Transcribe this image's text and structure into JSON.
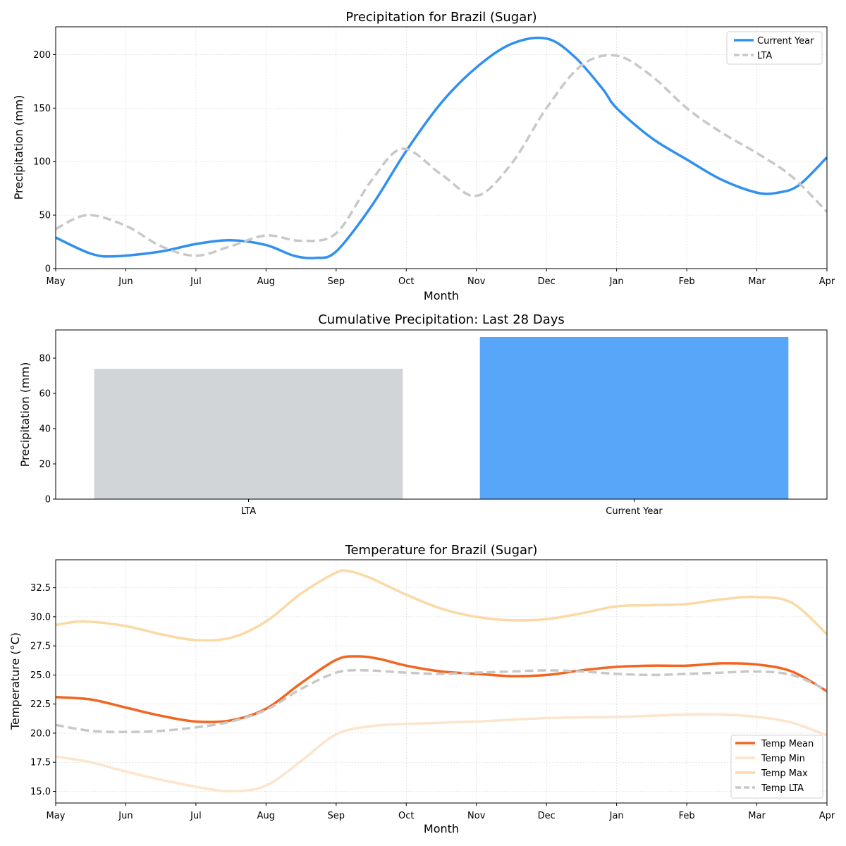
{
  "chart_data": [
    {
      "type": "line",
      "title": "Precipitation for Brazil (Sugar)",
      "xlabel": "Month",
      "ylabel": "Precipitation (mm)",
      "categories": [
        "May",
        "Jun",
        "Jul",
        "Aug",
        "Sep",
        "Oct",
        "Nov",
        "Dec",
        "Jan",
        "Feb",
        "Mar",
        "Apr"
      ],
      "xlim": [
        0,
        11
      ],
      "ylim": [
        0,
        226
      ],
      "yticks": [
        0,
        50,
        100,
        150,
        200
      ],
      "legend": "top-right",
      "series": [
        {
          "name": "Current Year",
          "color": "#3090f0",
          "style": "solid",
          "x": [
            0,
            0.5,
            0.85,
            1.5,
            2,
            2.5,
            3,
            3.4,
            3.7,
            4,
            4.5,
            5,
            5.5,
            6,
            6.5,
            7,
            7.4,
            7.8,
            8,
            8.5,
            9,
            9.5,
            10,
            10.3,
            10.6,
            11
          ],
          "y": [
            29,
            14,
            11.5,
            16,
            23,
            26.5,
            22,
            12,
            10,
            16,
            58,
            110,
            155,
            188,
            210,
            215,
            198,
            168,
            150,
            122,
            102,
            83,
            71,
            71,
            78,
            104
          ]
        },
        {
          "name": "LTA",
          "color": "#c8c8c8",
          "style": "dashed",
          "x": [
            0,
            0.45,
            1,
            1.5,
            2,
            2.5,
            3,
            3.5,
            4,
            4.5,
            4.95,
            5.5,
            6,
            6.5,
            7,
            7.5,
            8,
            8.5,
            9,
            9.5,
            10,
            10.5,
            11
          ],
          "y": [
            37,
            50,
            40,
            21,
            12,
            21,
            31,
            26,
            33,
            82,
            112,
            88,
            68,
            98,
            150,
            190,
            199,
            180,
            150,
            127,
            108,
            86,
            53
          ]
        }
      ]
    },
    {
      "type": "bar",
      "title": "Cumulative Precipitation: Last 28 Days",
      "xlabel": "",
      "ylabel": "Precipitation (mm)",
      "categories": [
        "LTA",
        "Current Year"
      ],
      "values": [
        74,
        92
      ],
      "colors": [
        "#d1d5d8",
        "#58a6fa"
      ],
      "ylim": [
        0,
        96
      ],
      "yticks": [
        0,
        20,
        40,
        60,
        80
      ]
    },
    {
      "type": "line",
      "title": "Temperature for Brazil (Sugar)",
      "xlabel": "Month",
      "ylabel": "Temperature (°C)",
      "categories": [
        "May",
        "Jun",
        "Jul",
        "Aug",
        "Sep",
        "Oct",
        "Nov",
        "Dec",
        "Jan",
        "Feb",
        "Mar",
        "Apr"
      ],
      "xlim": [
        0,
        11
      ],
      "ylim": [
        14,
        34.9
      ],
      "yticks": [
        "15.0",
        "17.5",
        "20.0",
        "22.5",
        "25.0",
        "27.5",
        "30.0",
        "32.5"
      ],
      "legend": "bottom-right",
      "series": [
        {
          "name": "Temp Mean",
          "color": "#f26520",
          "style": "solid",
          "x": [
            0,
            0.5,
            1,
            1.5,
            2,
            2.5,
            3,
            3.5,
            4,
            4.3,
            4.6,
            5,
            5.5,
            6,
            6.5,
            7,
            7.5,
            8,
            8.5,
            9,
            9.5,
            10,
            10.5,
            11
          ],
          "y": [
            23.1,
            22.9,
            22.2,
            21.5,
            21.0,
            21.1,
            22.1,
            24.3,
            26.3,
            26.6,
            26.4,
            25.8,
            25.3,
            25.1,
            24.9,
            25.0,
            25.4,
            25.7,
            25.8,
            25.8,
            26.0,
            25.9,
            25.3,
            23.6
          ]
        },
        {
          "name": "Temp Min",
          "color": "#fde4cc",
          "style": "solid",
          "x": [
            0,
            0.5,
            1,
            1.5,
            2,
            2.5,
            3,
            3.5,
            4,
            4.5,
            5,
            6,
            7,
            8,
            8.5,
            9,
            9.5,
            10,
            10.5,
            11
          ],
          "y": [
            18.0,
            17.5,
            16.7,
            16.0,
            15.4,
            15.0,
            15.5,
            17.6,
            19.9,
            20.6,
            20.8,
            21.0,
            21.3,
            21.4,
            21.5,
            21.6,
            21.6,
            21.4,
            20.9,
            19.8
          ]
        },
        {
          "name": "Temp Max",
          "color": "#fbd9a6",
          "style": "solid",
          "x": [
            0,
            0.4,
            1,
            1.5,
            2,
            2.5,
            3,
            3.5,
            4,
            4.2,
            4.5,
            5,
            5.5,
            6,
            6.5,
            7,
            7.5,
            8,
            8.5,
            9,
            9.5,
            10,
            10.5,
            11
          ],
          "y": [
            29.3,
            29.6,
            29.2,
            28.5,
            28.0,
            28.2,
            29.6,
            32.0,
            33.8,
            33.9,
            33.3,
            31.9,
            30.7,
            30.0,
            29.7,
            29.8,
            30.3,
            30.9,
            31.0,
            31.1,
            31.5,
            31.7,
            31.2,
            28.5
          ]
        },
        {
          "name": "Temp LTA",
          "color": "#c8c8c8",
          "style": "dashed",
          "x": [
            0,
            0.5,
            1,
            1.5,
            2,
            2.5,
            3,
            3.5,
            4,
            4.4,
            5,
            5.5,
            6,
            6.5,
            7,
            7.5,
            8,
            8.5,
            9,
            9.5,
            10,
            10.5,
            11
          ],
          "y": [
            20.7,
            20.2,
            20.1,
            20.2,
            20.5,
            21.0,
            22.0,
            23.8,
            25.2,
            25.4,
            25.2,
            25.1,
            25.2,
            25.3,
            25.4,
            25.3,
            25.1,
            25.0,
            25.1,
            25.2,
            25.3,
            25.0,
            23.7
          ]
        }
      ]
    }
  ]
}
